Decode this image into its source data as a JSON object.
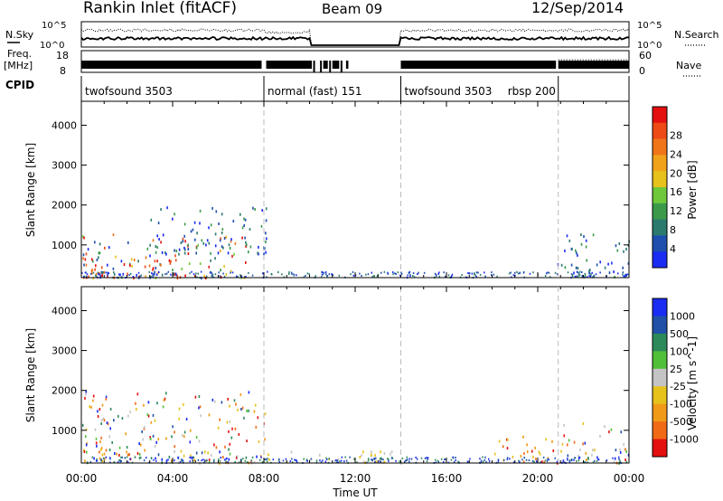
{
  "header": {
    "title": "Rankin Inlet (fitACF)",
    "beam": "Beam 09",
    "date": "12/Sep/2014"
  },
  "top_panels": {
    "nsky_label": "N.Sky",
    "nsearch_label": "N.Search",
    "noise_left_ticks": [
      "10^5",
      "10^0"
    ],
    "noise_right_ticks": [
      "10^5",
      "10^0"
    ],
    "freq_label_line1": "Freq.",
    "freq_label_line2": "[MHz]",
    "freq_ticks": [
      "18",
      "8"
    ],
    "nave_label": "Nave",
    "nave_ticks": [
      "60",
      "0"
    ],
    "cpid_label": "CPID",
    "cpid_segments": [
      {
        "label": "twofsound 3503",
        "start_hour": 0.0,
        "end_hour": 8.0
      },
      {
        "label": "normal (fast) 151",
        "start_hour": 8.0,
        "end_hour": 14.0
      },
      {
        "label": "twofsound 3503",
        "start_hour": 14.0,
        "end_hour": 20.9
      },
      {
        "label": "rbsp 200",
        "start_hour": 20.9,
        "end_hour": 24.0
      }
    ]
  },
  "chart_data": [
    {
      "type": "heatmap",
      "name": "power",
      "ylabel": "Slant Range [km]",
      "xlabel": "",
      "ylim": [
        180,
        4600
      ],
      "yticks": [
        1000,
        2000,
        3000,
        4000
      ],
      "xlim": [
        0,
        24
      ],
      "x_ticklabels": [],
      "colorbar": {
        "label": "Power [dB]",
        "ticks": [
          "4",
          "8",
          "12",
          "16",
          "20",
          "24",
          "28"
        ],
        "colors": [
          "#1a2bf2",
          "#1f4fae",
          "#2c7a6e",
          "#3a9a4a",
          "#6ec83a",
          "#e6c21a",
          "#f0a21a",
          "#f07418",
          "#ee4a16",
          "#e41010"
        ]
      },
      "echo_regions": [
        {
          "x": [
            0.0,
            7.2
          ],
          "y": [
            200,
            1300
          ],
          "level": "mixed-high"
        },
        {
          "x": [
            0.0,
            4.6
          ],
          "y": [
            200,
            700
          ],
          "level": "high"
        },
        {
          "x": [
            3.0,
            8.1
          ],
          "y": [
            800,
            2000
          ],
          "level": "low"
        },
        {
          "x": [
            20.8,
            24.0
          ],
          "y": [
            200,
            1300
          ],
          "level": "low"
        }
      ]
    },
    {
      "type": "heatmap",
      "name": "velocity",
      "ylabel": "Slant Range [km]",
      "xlabel": "Time UT",
      "ylim": [
        180,
        4600
      ],
      "yticks": [
        1000,
        2000,
        3000,
        4000
      ],
      "xlim": [
        0,
        24
      ],
      "x_ticklabels": [
        "00:00",
        "04:00",
        "08:00",
        "12:00",
        "16:00",
        "20:00",
        "00:00"
      ],
      "colorbar": {
        "label": "Velocity [m s^-1]",
        "ticks": [
          "1000",
          "500",
          "100",
          "25",
          "-25",
          "-100",
          "-500",
          "-1000"
        ],
        "colors": [
          "#1a2bf2",
          "#2050a8",
          "#2c8a5a",
          "#50c038",
          "#c4c4c4",
          "#e6c21a",
          "#f09a18",
          "#f06a16",
          "#e41010"
        ]
      },
      "echo_regions": [
        {
          "x": [
            0.0,
            8.1
          ],
          "y": [
            200,
            2000
          ],
          "level": "mixed"
        },
        {
          "x": [
            4.0,
            14.0
          ],
          "y": [
            200,
            500
          ],
          "level": "low-negative"
        },
        {
          "x": [
            18.0,
            21.0
          ],
          "y": [
            200,
            900
          ],
          "level": "negative"
        },
        {
          "x": [
            21.0,
            24.0
          ],
          "y": [
            200,
            1200
          ],
          "level": "mixed"
        }
      ]
    }
  ]
}
